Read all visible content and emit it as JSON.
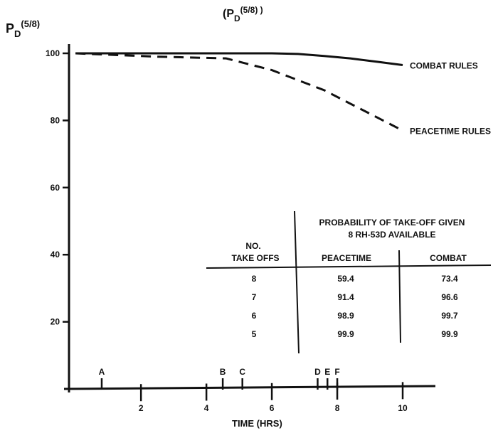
{
  "chart_data": {
    "type": "line",
    "title": "(P",
    "title_sub": "D",
    "title_sup": "(5/8) )",
    "ylabel": "P",
    "ylabel_sub": "D",
    "ylabel_sup": "(5/8)",
    "xlabel": "TIME (HRS)",
    "xlim": [
      -0.2,
      11
    ],
    "ylim": [
      0,
      100
    ],
    "xticks": [
      {
        "value": 2,
        "label": "2"
      },
      {
        "value": 4,
        "label": "4"
      },
      {
        "value": 6,
        "label": "6"
      },
      {
        "value": 8,
        "label": "8"
      },
      {
        "value": 10,
        "label": "10"
      }
    ],
    "yticks": [
      {
        "value": 100,
        "label": "100"
      },
      {
        "value": 80,
        "label": "80"
      },
      {
        "value": 60,
        "label": "60"
      },
      {
        "value": 40,
        "label": "40"
      },
      {
        "value": 20,
        "label": "20"
      }
    ],
    "series": [
      {
        "name": "COMBAT RULES",
        "style": "solid",
        "x": [
          0,
          2,
          4,
          6,
          6.8,
          7.6,
          8.4,
          9.2,
          10.0
        ],
        "y": [
          100,
          100,
          100,
          100,
          99.8,
          99.2,
          98.5,
          97.5,
          96.5
        ]
      },
      {
        "name": "PEACETIME RULES",
        "style": "dashed",
        "x": [
          0,
          2.5,
          4.6,
          5.2,
          6.0,
          6.8,
          7.6,
          8.4,
          9.2,
          10.0
        ],
        "y": [
          100,
          99,
          98.5,
          97,
          95,
          92,
          89,
          85,
          81,
          77
        ]
      }
    ],
    "event_markers": [
      {
        "label": "A",
        "x": 0.8
      },
      {
        "label": "B",
        "x": 4.5
      },
      {
        "label": "C",
        "x": 5.1
      },
      {
        "label": "D",
        "x": 7.4
      },
      {
        "label": "E",
        "x": 7.7
      },
      {
        "label": "F",
        "x": 8.0
      }
    ],
    "table": {
      "title_line1": "PROBABILITY OF TAKE-OFF GIVEN",
      "title_line2": "8 RH-53D AVAILABLE",
      "row_header_line1": "NO.",
      "row_header_line2": "TAKE OFFS",
      "col1": "PEACETIME",
      "col2": "COMBAT",
      "rows": [
        {
          "n": "8",
          "peacetime": "59.4",
          "combat": "73.4"
        },
        {
          "n": "7",
          "peacetime": "91.4",
          "combat": "96.6"
        },
        {
          "n": "6",
          "peacetime": "98.9",
          "combat": "99.7"
        },
        {
          "n": "5",
          "peacetime": "99.9",
          "combat": "99.9"
        }
      ]
    }
  }
}
